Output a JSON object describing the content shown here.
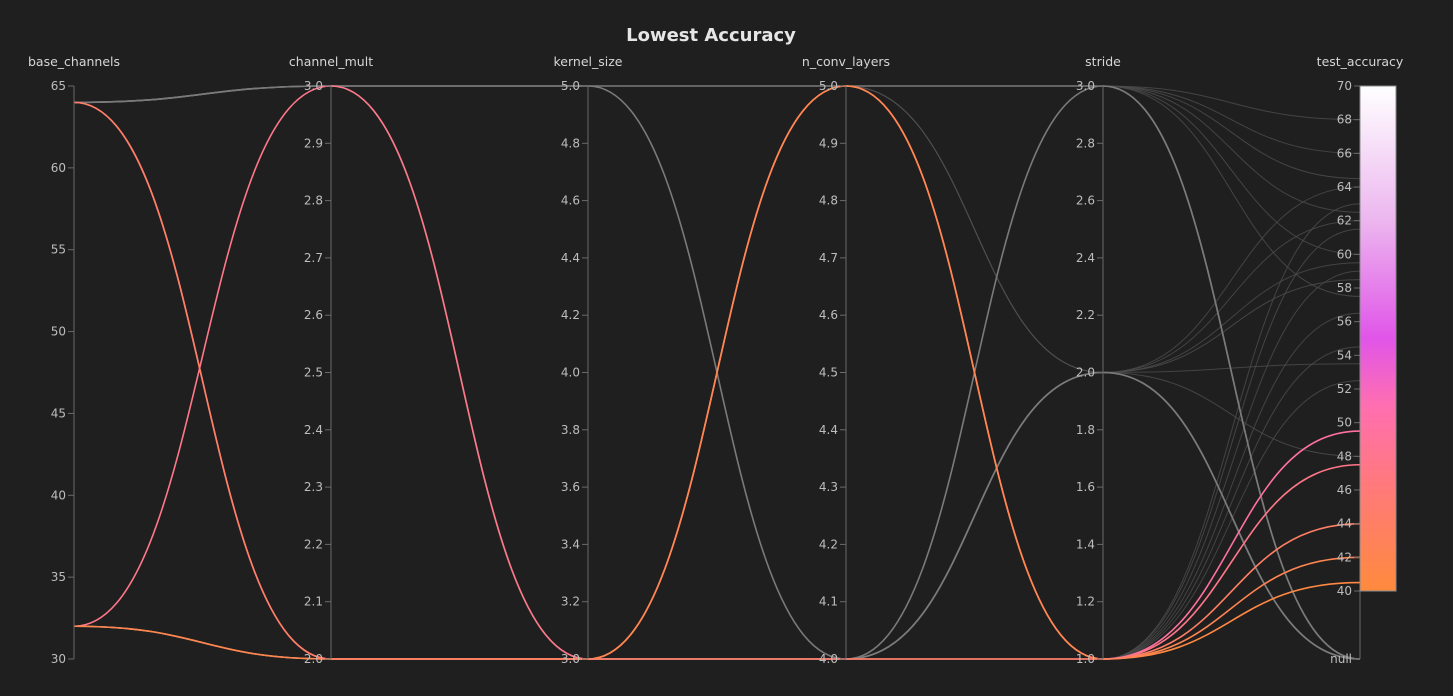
{
  "chart_data": {
    "type": "parallel_coordinates",
    "title": "Lowest Accuracy",
    "axes": [
      {
        "name": "base_channels",
        "range": [
          30,
          65
        ],
        "ticks": [
          "30",
          "35",
          "40",
          "45",
          "50",
          "55",
          "60",
          "65"
        ],
        "tick_values": [
          30,
          35,
          40,
          45,
          50,
          55,
          60,
          65
        ]
      },
      {
        "name": "channel_mult",
        "range": [
          2.0,
          3.0
        ],
        "ticks": [
          "2.0",
          "2.1",
          "2.2",
          "2.3",
          "2.4",
          "2.5",
          "2.6",
          "2.7",
          "2.8",
          "2.9",
          "3.0"
        ],
        "tick_values": [
          2.0,
          2.1,
          2.2,
          2.3,
          2.4,
          2.5,
          2.6,
          2.7,
          2.8,
          2.9,
          3.0
        ]
      },
      {
        "name": "kernel_size",
        "range": [
          3.0,
          5.0
        ],
        "ticks": [
          "3.0",
          "3.2",
          "3.4",
          "3.6",
          "3.8",
          "4.0",
          "4.2",
          "4.4",
          "4.6",
          "4.8",
          "5.0"
        ],
        "tick_values": [
          3.0,
          3.2,
          3.4,
          3.6,
          3.8,
          4.0,
          4.2,
          4.4,
          4.6,
          4.8,
          5.0
        ]
      },
      {
        "name": "n_conv_layers",
        "range": [
          4.0,
          5.0
        ],
        "ticks": [
          "4.0",
          "4.1",
          "4.2",
          "4.3",
          "4.4",
          "4.5",
          "4.6",
          "4.7",
          "4.8",
          "4.9",
          "5.0"
        ],
        "tick_values": [
          4.0,
          4.1,
          4.2,
          4.3,
          4.4,
          4.5,
          4.6,
          4.7,
          4.8,
          4.9,
          5.0
        ]
      },
      {
        "name": "stride",
        "range": [
          1.0,
          3.0
        ],
        "ticks": [
          "1.0",
          "1.2",
          "1.4",
          "1.6",
          "1.8",
          "2.0",
          "2.2",
          "2.4",
          "2.6",
          "2.8",
          "3.0"
        ],
        "tick_values": [
          1.0,
          1.2,
          1.4,
          1.6,
          1.8,
          2.0,
          2.2,
          2.4,
          2.6,
          2.8,
          3.0
        ]
      },
      {
        "name": "test_accuracy",
        "range": [
          40,
          70
        ],
        "ticks": [
          "40",
          "42",
          "44",
          "46",
          "48",
          "50",
          "52",
          "54",
          "56",
          "58",
          "60",
          "62",
          "64",
          "66",
          "68",
          "70"
        ],
        "tick_values": [
          40,
          42,
          44,
          46,
          48,
          50,
          52,
          54,
          56,
          58,
          60,
          62,
          64,
          66,
          68,
          70
        ],
        "has_null": true,
        "null_label": "null"
      }
    ],
    "colorscale": {
      "axis": "test_accuracy",
      "stops": [
        {
          "value": 40,
          "color": "#ff8a3d"
        },
        {
          "value": 46,
          "color": "#ff7a78"
        },
        {
          "value": 51,
          "color": "#ff6fb0"
        },
        {
          "value": 55,
          "color": "#e055e8"
        },
        {
          "value": 62,
          "color": "#ecb6ef"
        },
        {
          "value": 70,
          "color": "#ffffff"
        }
      ]
    },
    "null_line_color": "#7a7a7a",
    "runs": [
      {
        "values": [
          64,
          3.0,
          3.0,
          4.0,
          2.0,
          null
        ]
      },
      {
        "values": [
          64,
          2.0,
          3.0,
          4.0,
          1.0,
          49.5
        ]
      },
      {
        "values": [
          32,
          3.0,
          3.0,
          5.0,
          1.0,
          47.5
        ]
      },
      {
        "values": [
          32,
          2.0,
          3.0,
          5.0,
          1.0,
          40.5
        ]
      },
      {
        "values": [
          32,
          2.0,
          3.0,
          5.0,
          1.0,
          42.0
        ]
      },
      {
        "values": [
          64,
          3.0,
          5.0,
          4.0,
          3.0,
          null
        ]
      },
      {
        "values": [
          32,
          2.0,
          3.0,
          4.0,
          2.0,
          null
        ]
      },
      {
        "values": [
          64,
          3.0,
          5.0,
          5.0,
          3.0,
          null
        ]
      },
      {
        "values": [
          64,
          2.0,
          3.0,
          4.0,
          1.0,
          44.0
        ]
      }
    ],
    "stride_fan": [
      {
        "stride": 3.0,
        "acc": 68.0
      },
      {
        "stride": 3.0,
        "acc": 66.0
      },
      {
        "stride": 3.0,
        "acc": 64.5
      },
      {
        "stride": 3.0,
        "acc": 62.5
      },
      {
        "stride": 3.0,
        "acc": 60.0
      },
      {
        "stride": 3.0,
        "acc": 57.5
      },
      {
        "stride": 2.0,
        "acc": 64.0
      },
      {
        "stride": 2.0,
        "acc": 62.0
      },
      {
        "stride": 2.0,
        "acc": 59.5
      },
      {
        "stride": 2.0,
        "acc": 58.5
      },
      {
        "stride": 2.0,
        "acc": 53.5
      },
      {
        "stride": 2.0,
        "acc": 48.0
      },
      {
        "stride": 1.0,
        "acc": 63.0
      },
      {
        "stride": 1.0,
        "acc": 61.5
      },
      {
        "stride": 1.0,
        "acc": 59.0
      },
      {
        "stride": 1.0,
        "acc": 56.5
      },
      {
        "stride": 1.0,
        "acc": 54.5
      },
      {
        "stride": 1.0,
        "acc": 52.5
      }
    ],
    "layer_fan": [
      {
        "from": 5.0,
        "stride": 2.0
      },
      {
        "from": 5.0,
        "stride": 2.0
      },
      {
        "from": 5.0,
        "stride": 2.0
      },
      {
        "from": 4.0,
        "stride": 2.0
      },
      {
        "from": 4.0,
        "stride": 2.0
      },
      {
        "from": 4.0,
        "stride": 2.0
      },
      {
        "from": 4.0,
        "stride": 2.0
      },
      {
        "from": 4.0,
        "stride": 3.0
      }
    ]
  }
}
